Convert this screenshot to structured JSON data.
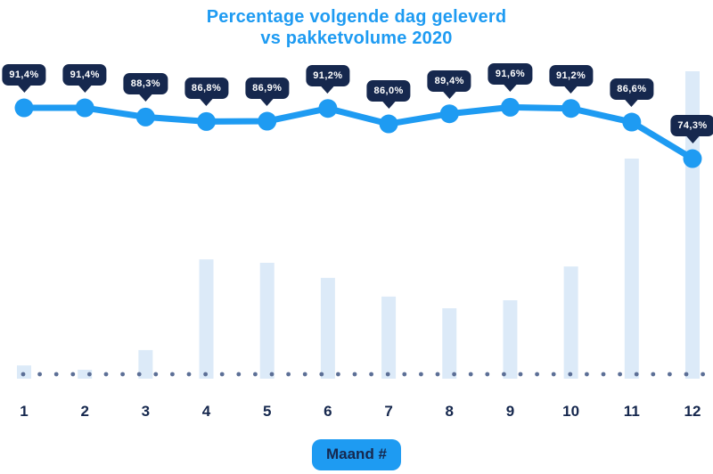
{
  "title": {
    "line1": "Percentage volgende dag geleverd",
    "line2": "vs pakketvolume 2020"
  },
  "x_axis": {
    "title": "Maand #",
    "ticks": [
      "1",
      "2",
      "3",
      "4",
      "5",
      "6",
      "7",
      "8",
      "9",
      "10",
      "11",
      "12"
    ]
  },
  "chart_data": {
    "type": "combo",
    "title": "Percentage volgende dag geleverd vs pakketvolume 2020",
    "xlabel": "Maand #",
    "categories": [
      1,
      2,
      3,
      4,
      5,
      6,
      7,
      8,
      9,
      10,
      11,
      12
    ],
    "grid": false,
    "legend": false,
    "y_axis_shown": false,
    "series": [
      {
        "name": "Percentage volgende dag geleverd",
        "type": "line",
        "unit": "%",
        "values": [
          91.4,
          91.4,
          88.3,
          86.8,
          86.9,
          91.2,
          86.0,
          89.4,
          91.6,
          91.2,
          86.6,
          74.3
        ],
        "labels": [
          "91,4%",
          "91,4%",
          "88,3%",
          "86,8%",
          "86,9%",
          "91,2%",
          "86,0%",
          "89,4%",
          "91,6%",
          "91,2%",
          "86,6%",
          "74,3%"
        ]
      },
      {
        "name": "Pakketvolume 2020",
        "type": "bar",
        "unit": "relative volume (no value axis shown, % of max month)",
        "values_relative": [
          4.3,
          2.9,
          9.3,
          38.8,
          37.7,
          32.8,
          26.7,
          22.9,
          25.5,
          36.5,
          71.6,
          100
        ]
      }
    ],
    "baseline_style": "dotted"
  },
  "colors": {
    "accent_blue": "#1E9BF2",
    "navy": "#16284E",
    "bar_fill": "#DCEAF8",
    "baseline_dot": "#5C6F96",
    "badge_text": "#FFFFFF",
    "background": "#FFFFFF"
  }
}
